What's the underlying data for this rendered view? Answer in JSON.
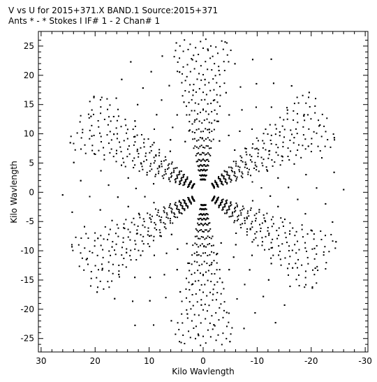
{
  "window": {
    "title_line1": "V vs U for 2015+371.X BAND.1   Source:2015+371",
    "title_line2": "Ants * - *     Stokes I  IF# 1 - 2  Chan# 1"
  },
  "chart_data": {
    "type": "scatter",
    "title": "V vs U for 2015+371.X BAND.1   Source:2015+371",
    "subtitle": "Ants * - *     Stokes I  IF# 1 - 2  Chan# 1",
    "xlabel": "Kilo Wavlength",
    "ylabel": "Kilo Wavlength",
    "xlim": [
      30.5,
      -30.5
    ],
    "ylim": [
      -27.3,
      27.5
    ],
    "x_ticks": [
      30,
      20,
      10,
      0,
      -10,
      -20,
      -30
    ],
    "x_tick_labels": [
      "30",
      "20",
      "10",
      "0",
      "-10",
      "-20",
      "-30"
    ],
    "y_ticks": [
      25,
      20,
      15,
      10,
      5,
      0,
      -5,
      -10,
      -15,
      -20,
      -25
    ],
    "y_tick_labels": [
      "25",
      "20",
      "15",
      "10",
      "5",
      "0",
      "-5",
      "-10",
      "-15",
      "-20",
      "-25"
    ],
    "grid": false,
    "marker": "dot",
    "marker_color": "#000000",
    "uv_tracks": {
      "description_note": "",
      "baselines_klambda": [
        2.2,
        2.9,
        3.8,
        4.6,
        5.5,
        6.6,
        7.8,
        9.1,
        10.6,
        12.2,
        13.8,
        15.5,
        17.2,
        18.9,
        20.6,
        22.3,
        24.0,
        25.5
      ],
      "arm_angles_deg": [
        90,
        30,
        -30
      ],
      "arm_span_deg": 26,
      "points_per_arc": 12,
      "symmetric": true
    }
  }
}
